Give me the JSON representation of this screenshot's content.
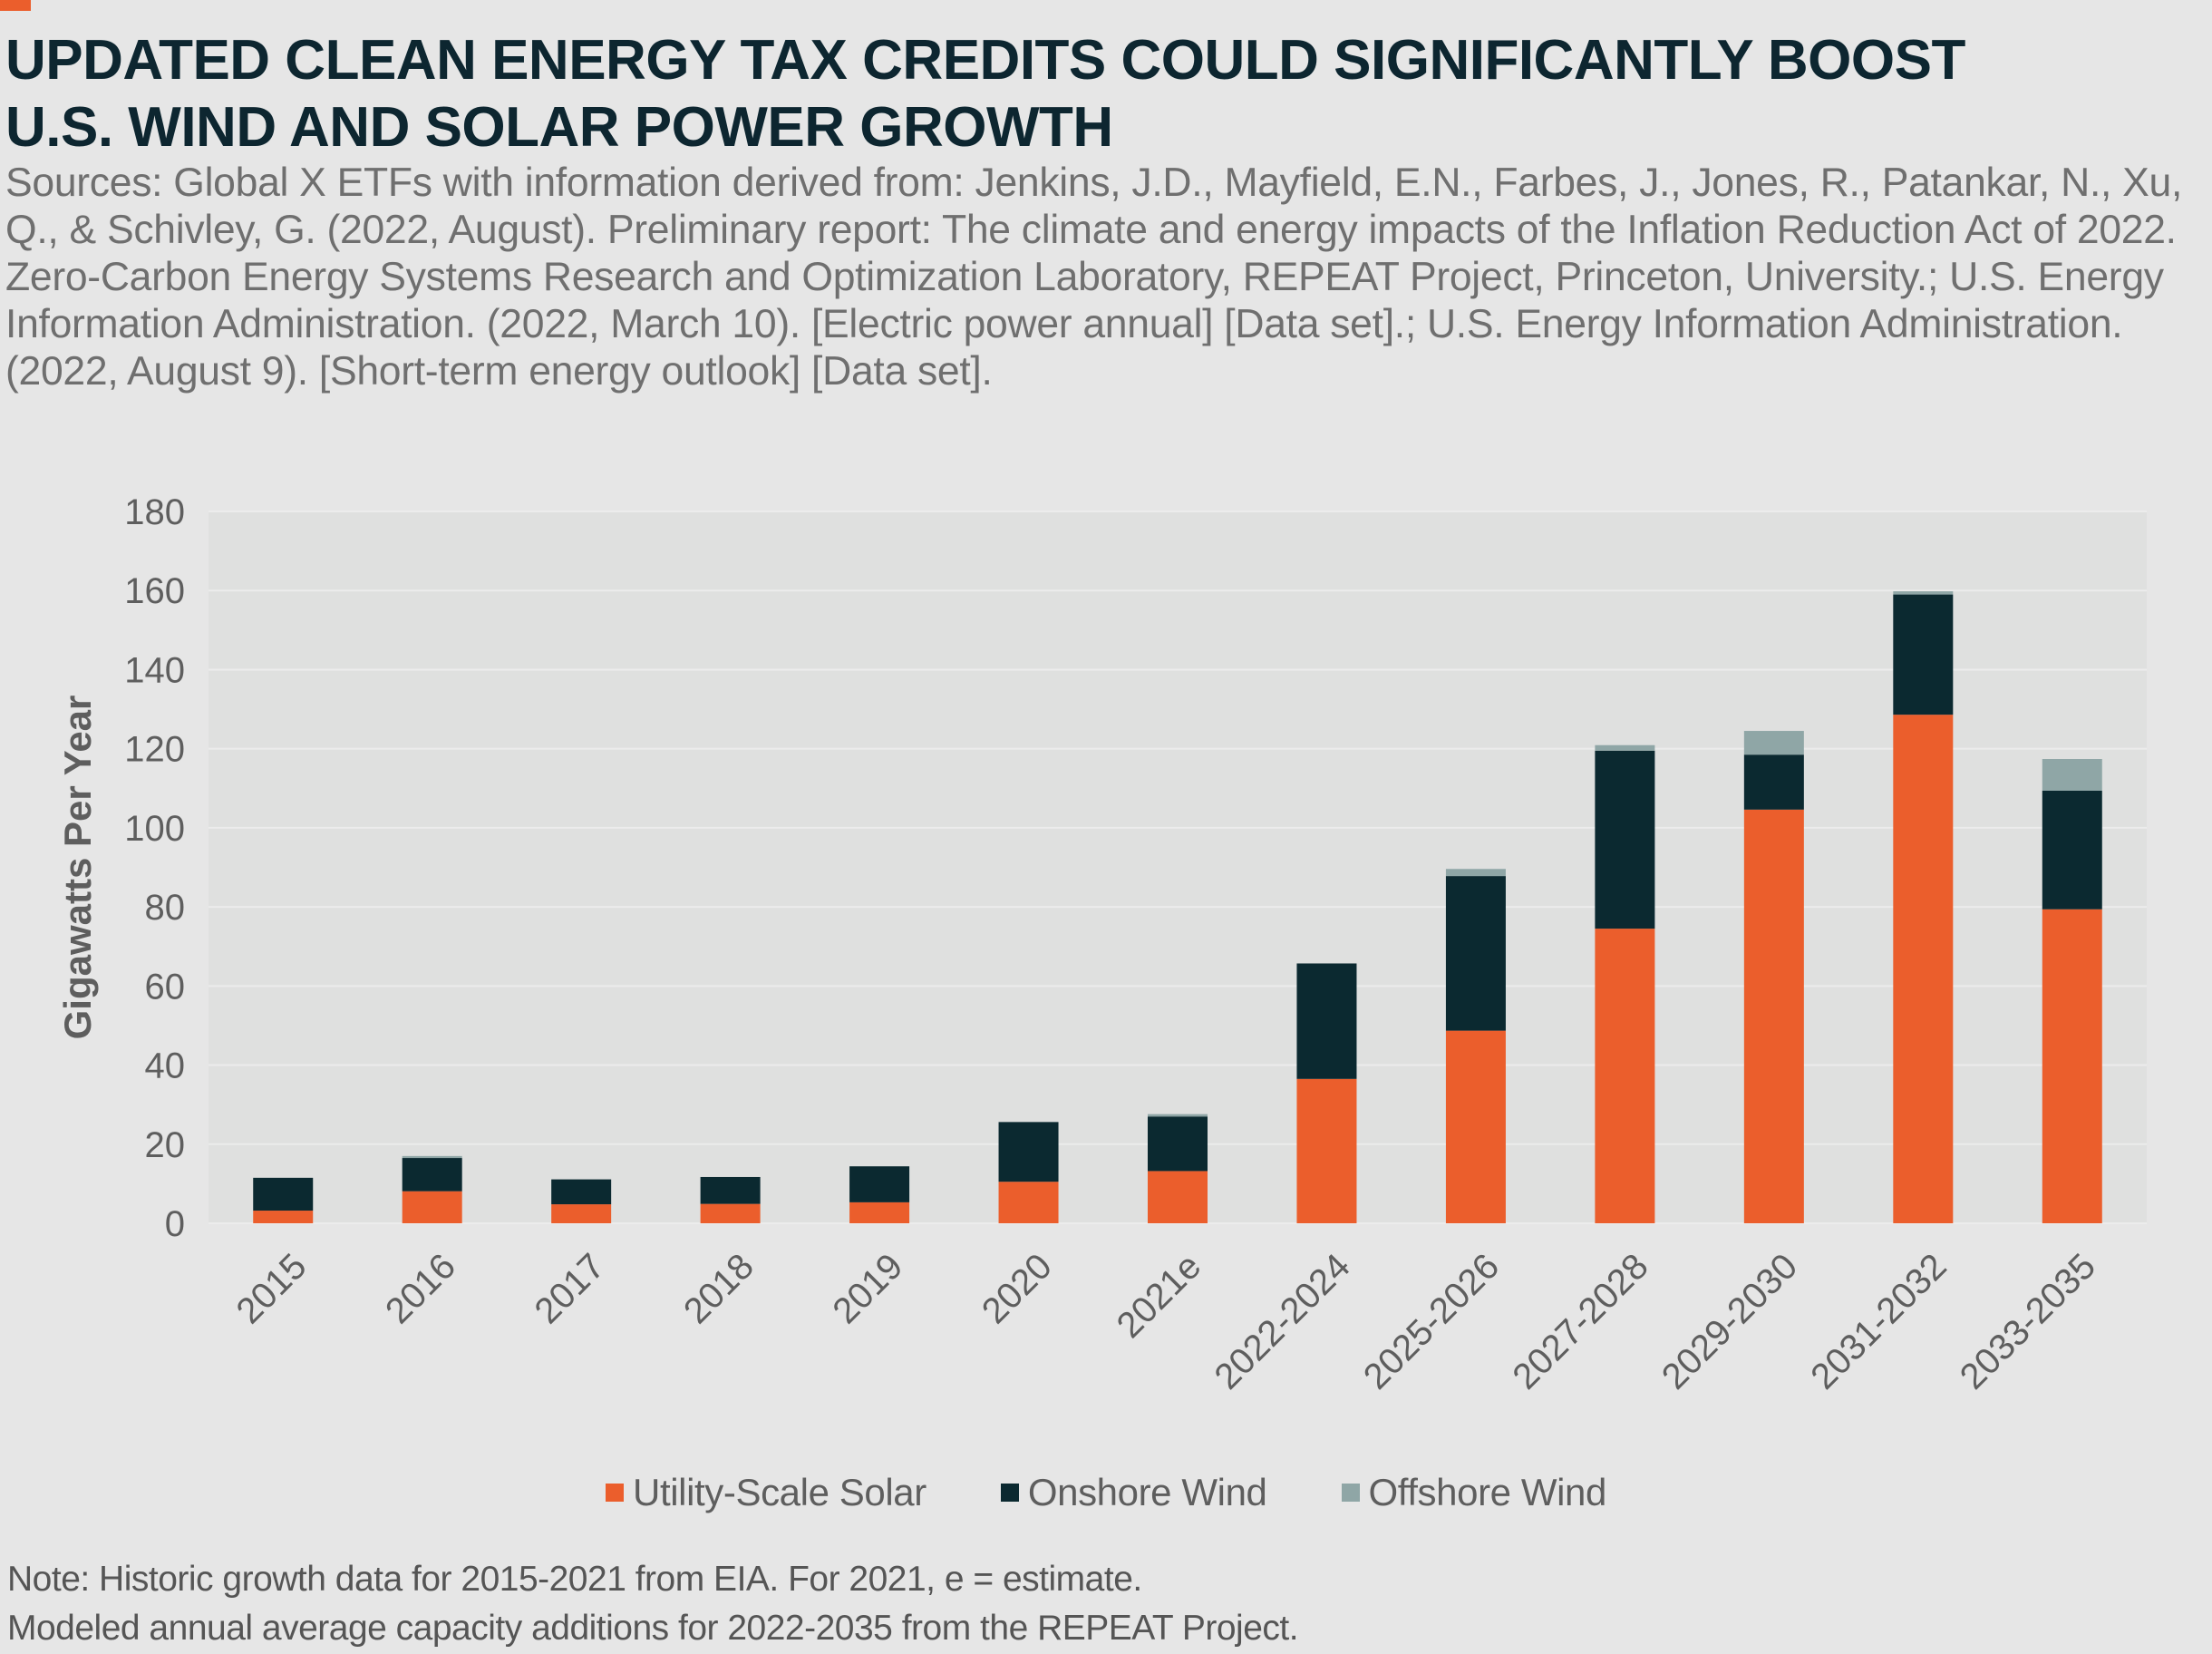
{
  "header": {
    "title_line1": "UPDATED CLEAN ENERGY TAX CREDITS COULD SIGNIFICANTLY BOOST",
    "title_line2": "U.S. WIND AND SOLAR POWER GROWTH",
    "sources": "Sources: Global X ETFs with information derived from: Jenkins, J.D., Mayfield, E.N., Farbes, J., Jones, R., Patankar, N., Xu, Q., & Schivley, G. (2022, August). Preliminary report: The climate and energy impacts of the Inflation Reduction Act of 2022. Zero-Carbon Energy Systems Research and Optimization Laboratory, REPEAT Project, Princeton, University.; U.S. Energy Information Administration. (2022, March 10). [Electric power annual] [Data set].; U.S. Energy Information Administration. (2022, August 9). [Short-term energy outlook] [Data set]."
  },
  "colors": {
    "accent": "#eb5e2c",
    "title": "#0d2630",
    "solar": "#eb5e2c",
    "onshore": "#0b2930",
    "offshore": "#8fa6a6",
    "plot_bg": "#dfe0df",
    "grid": "#ececec",
    "text": "#5e5e5e"
  },
  "chart_data": {
    "type": "bar",
    "stacked": true,
    "ylabel": "Gigawatts Per Year",
    "xlabel": "",
    "ylim": [
      0,
      180
    ],
    "yticks": [
      0,
      20,
      40,
      60,
      80,
      100,
      120,
      140,
      160,
      180
    ],
    "grid": true,
    "legend_position": "bottom-center",
    "categories": [
      "2015",
      "2016",
      "2017",
      "2018",
      "2019",
      "2020",
      "2021e",
      "2022-2024",
      "2025-2026",
      "2027-2028",
      "2029-2030",
      "2031-2032",
      "2033-2035"
    ],
    "series": [
      {
        "name": "Utility-Scale Solar",
        "color": "#eb5e2c",
        "values": [
          3.2,
          8.1,
          4.8,
          4.9,
          5.3,
          10.5,
          13.2,
          36.5,
          48.7,
          74.5,
          104.6,
          128.6,
          79.4
        ]
      },
      {
        "name": "Onshore Wind",
        "color": "#0b2930",
        "values": [
          8.3,
          8.4,
          6.3,
          6.8,
          9.1,
          15.1,
          13.8,
          29.2,
          39.1,
          45.0,
          13.9,
          30.4,
          30.0
        ]
      },
      {
        "name": "Offshore Wind",
        "color": "#8fa6a6",
        "values": [
          0,
          0.5,
          0,
          0,
          0,
          0,
          0.6,
          0,
          1.8,
          1.4,
          6.0,
          0.8,
          8.0
        ]
      }
    ]
  },
  "note": {
    "line1": "Note: Historic growth data for 2015-2021 from EIA. For 2021, e = estimate.",
    "line2": "Modeled annual average capacity additions for 2022-2035 from the REPEAT Project."
  }
}
